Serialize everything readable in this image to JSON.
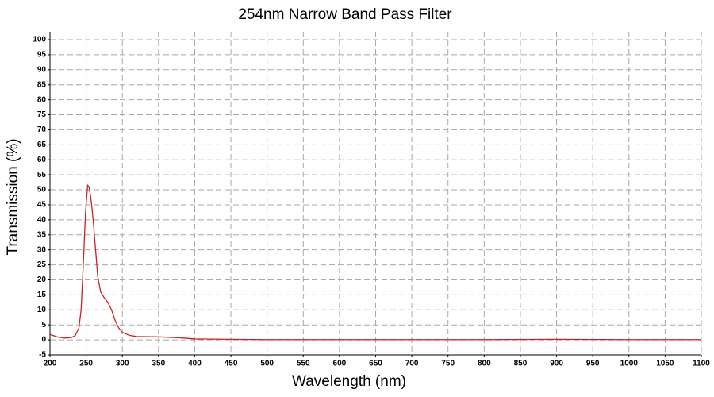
{
  "chart_data": {
    "type": "line",
    "title": "254nm Narrow Band Pass Filter",
    "xlabel": "Wavelength (nm)",
    "ylabel": "Transmission (%)",
    "x": [
      200,
      210,
      220,
      230,
      235,
      240,
      243,
      246,
      249,
      252,
      254,
      256,
      258,
      260,
      263,
      266,
      270,
      275,
      280,
      285,
      290,
      295,
      300,
      310,
      320,
      350,
      380,
      400,
      450,
      500,
      600,
      700,
      800,
      900,
      1000,
      1100
    ],
    "values": [
      1.8,
      1,
      0.6,
      0.8,
      1.5,
      4,
      10,
      25,
      42,
      51.5,
      51,
      48,
      44,
      39,
      30,
      21,
      16,
      14,
      12.5,
      10,
      6.5,
      4,
      2.5,
      1.5,
      1.1,
      1,
      0.7,
      0.3,
      0.2,
      0.1,
      0.1,
      0.1,
      0.1,
      0.2,
      0.1,
      0.1
    ],
    "color": "#cc2222",
    "xlim": [
      200,
      1100
    ],
    "xticks": [
      200,
      250,
      300,
      350,
      400,
      450,
      500,
      550,
      600,
      650,
      700,
      750,
      800,
      850,
      900,
      950,
      1000,
      1050,
      1100
    ],
    "ylim": [
      -5,
      100
    ],
    "yticks": [
      -5,
      0,
      5,
      10,
      15,
      20,
      25,
      30,
      35,
      40,
      45,
      50,
      55,
      60,
      65,
      70,
      75,
      80,
      85,
      90,
      95,
      100
    ],
    "grid": true
  }
}
